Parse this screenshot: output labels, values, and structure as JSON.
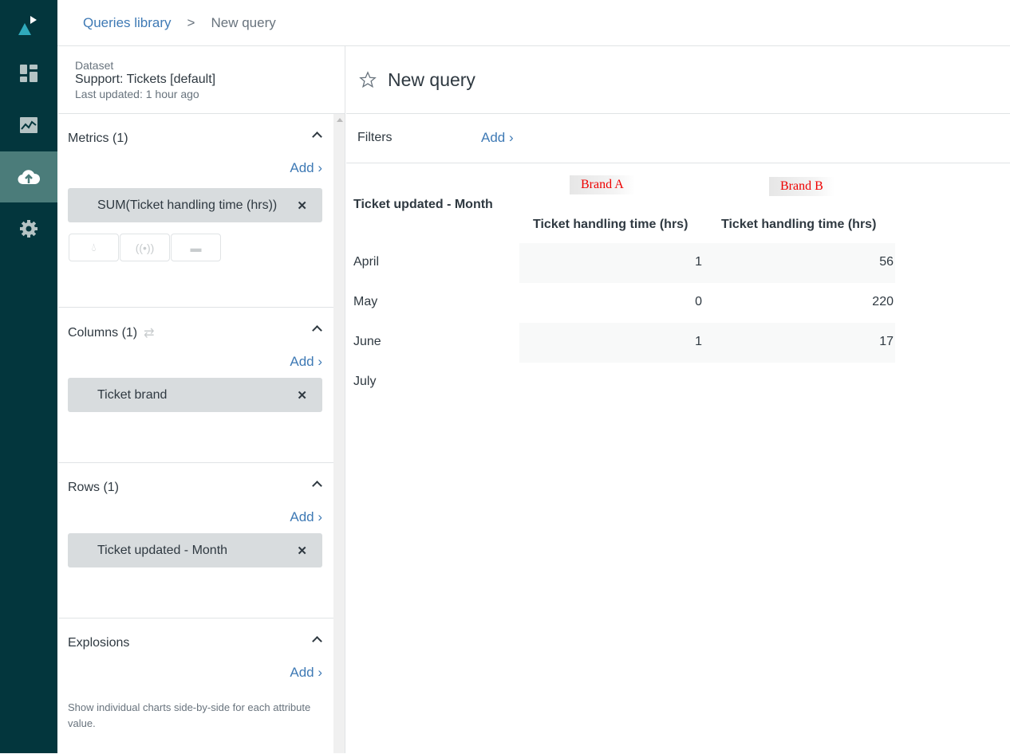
{
  "breadcrumb": {
    "parent": "Queries library",
    "separator": ">",
    "current": "New query"
  },
  "nav": {
    "items": [
      "dashboard-icon",
      "reports-icon",
      "upload-icon",
      "settings-icon"
    ],
    "active": "upload-icon"
  },
  "dataset": {
    "label": "Dataset",
    "name": "Support: Tickets [default]",
    "updated": "Last updated: 1 hour ago"
  },
  "sections": {
    "metrics": {
      "title": "Metrics (1)",
      "add": "Add",
      "pill": "SUM(Ticket handling time (hrs))"
    },
    "columns": {
      "title": "Columns (1)",
      "add": "Add",
      "pill": "Ticket brand"
    },
    "rows": {
      "title": "Rows (1)",
      "add": "Add",
      "pill": "Ticket updated - Month"
    },
    "explosions": {
      "title": "Explosions",
      "add": "Add",
      "description": "Show individual charts side-by-side for each attribute value."
    }
  },
  "query": {
    "title": "New query",
    "filters_label": "Filters",
    "filters_add": "Add"
  },
  "table": {
    "row_header": "Ticket updated - Month",
    "brands": [
      "Brand A",
      "Brand B"
    ],
    "metric_headers": [
      "Ticket handling time (hrs)",
      "Ticket handling time (hrs)"
    ],
    "rows": [
      {
        "month": "April",
        "a": "1",
        "b": "56"
      },
      {
        "month": "May",
        "a": "0",
        "b": "220"
      },
      {
        "month": "June",
        "a": "1",
        "b": "17"
      },
      {
        "month": "July",
        "a": "",
        "b": ""
      }
    ]
  },
  "colors": {
    "nav_bg": "#03363d",
    "nav_active": "#4b7c7a",
    "link": "#3f7ab5",
    "brand_label": "#e00000"
  }
}
